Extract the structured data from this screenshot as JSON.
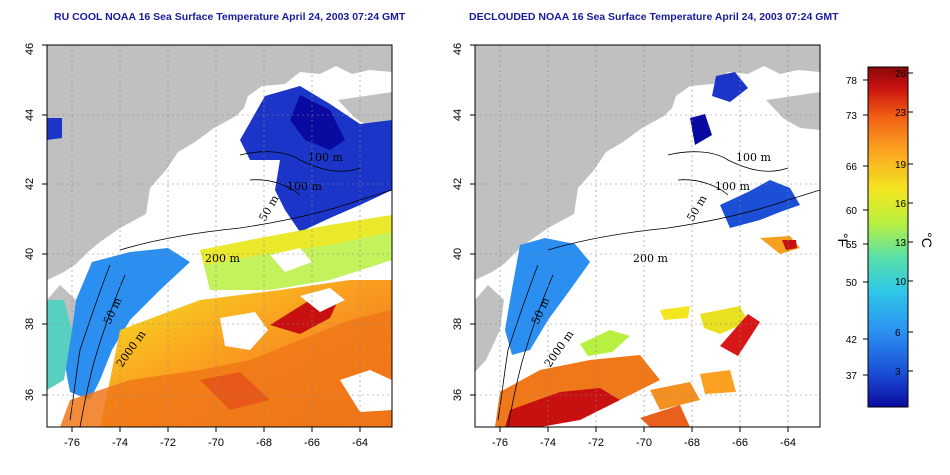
{
  "titles": {
    "left": "RU COOL NOAA 16 Sea Surface Temperature April 24, 2003 07:24 GMT",
    "right": "DECLOUDED NOAA 16 Sea Surface Temperature April 24, 2003 07:24 GMT"
  },
  "map_axes": {
    "lon_ticks": [
      "-76",
      "-74",
      "-72",
      "-70",
      "-68",
      "-66",
      "-64"
    ],
    "lat_ticks": [
      "36",
      "38",
      "40",
      "42",
      "44",
      "46"
    ]
  },
  "contour_labels": [
    "100 m",
    "100 m",
    "50 m",
    "200 m",
    "50 m",
    "2000 m"
  ],
  "colorbar": {
    "fahrenheit_ticks": [
      "78",
      "73",
      "66",
      "60",
      "55",
      "50",
      "42",
      "37"
    ],
    "celsius_ticks": [
      "26",
      "23",
      "19",
      "16",
      "13",
      "10",
      "6",
      "3"
    ],
    "unit_f": "°F",
    "unit_c": "°C",
    "colors": [
      "#0b0aa0",
      "#1a4fd6",
      "#2a8ff0",
      "#2fc8e8",
      "#58e0a8",
      "#b8f040",
      "#f4e620",
      "#fba020",
      "#f05a14",
      "#c81010",
      "#8a0808"
    ]
  },
  "palette": {
    "land": "#c0c0c0",
    "cloud": "#ffffff",
    "frame": "#000000"
  }
}
